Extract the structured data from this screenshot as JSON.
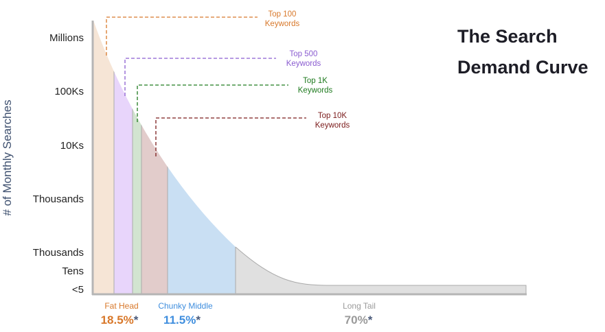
{
  "title_lines": [
    "The Search",
    "Demand Curve"
  ],
  "y_axis_label": "# of Monthly Searches",
  "y_ticks": [
    "Millions",
    "100Ks",
    "10Ks",
    "Thousands",
    "Thousands",
    "Tens",
    "<5"
  ],
  "annotations": [
    {
      "line1": "Top 100",
      "line2": "Keywords",
      "color": "#d8782a"
    },
    {
      "line1": "Top 500",
      "line2": "Keywords",
      "color": "#8a5cd0"
    },
    {
      "line1": "Top 1K",
      "line2": "Keywords",
      "color": "#1e7a1e"
    },
    {
      "line1": "Top 10K",
      "line2": "Keywords",
      "color": "#7a1a1a"
    }
  ],
  "segments": [
    {
      "label": "Fat Head",
      "percent": "18.5%",
      "color": "#d8782a"
    },
    {
      "label": "Chunky Middle",
      "percent": "11.5%",
      "color": "#3f8ede"
    },
    {
      "label": "Long Tail",
      "percent": "70%",
      "color": "#9a9a9a"
    }
  ],
  "asterisk": "*",
  "asterisk_color": "#4a5a7a",
  "band_colors": [
    "#f6e5d6",
    "#e8d5fb",
    "#d2e4d0",
    "#e2cccb",
    "#c9dff3",
    "#e0e0e0"
  ]
}
